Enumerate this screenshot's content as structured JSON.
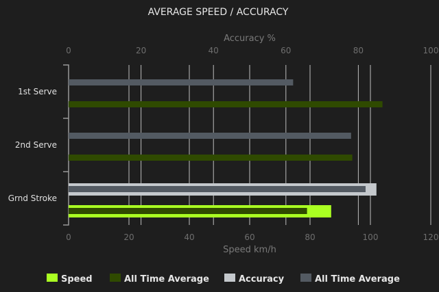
{
  "chart_data": {
    "type": "bar",
    "orientation": "horizontal",
    "title": "AVERAGE SPEED / ACCURACY",
    "categories": [
      "1st Serve",
      "2nd Serve",
      "Grnd Stroke"
    ],
    "x_axes": {
      "bottom": {
        "label": "Speed km/h",
        "range": [
          0,
          120
        ],
        "ticks": [
          0,
          20,
          40,
          60,
          80,
          100,
          120
        ]
      },
      "top": {
        "label": "Accuracy %",
        "range": [
          0,
          100
        ],
        "ticks": [
          0,
          20,
          40,
          60,
          80,
          100
        ]
      }
    },
    "grid": true,
    "legend_position": "bottom",
    "series": [
      {
        "name": "Speed",
        "axis": "bottom",
        "color": "#aaff22",
        "values": [
          null,
          null,
          87
        ]
      },
      {
        "name": "All Time Average",
        "axis": "bottom",
        "color": "#2f4a00",
        "values": [
          104,
          94,
          79
        ]
      },
      {
        "name": "Accuracy",
        "axis": "top",
        "color": "#c4c8cc",
        "values": [
          null,
          null,
          85
        ]
      },
      {
        "name": "All Time Average",
        "axis": "top",
        "color": "#535a62",
        "values": [
          62,
          78,
          82
        ]
      }
    ]
  }
}
